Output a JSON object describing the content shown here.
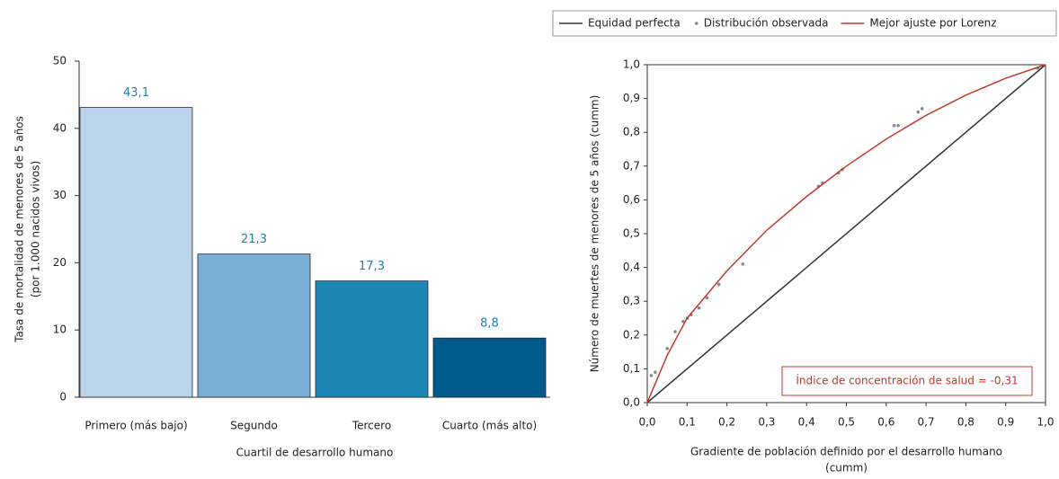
{
  "chart_data": [
    {
      "type": "bar",
      "categories": [
        "Primero (más bajo)",
        "Segundo",
        "Tercero",
        "Cuarto (más alto)"
      ],
      "values": [
        43.1,
        21.3,
        17.3,
        8.8
      ],
      "value_labels": [
        "43,1",
        "21,3",
        "17,3",
        "8,8"
      ],
      "colors": [
        "#bcd4ea",
        "#7aadd3",
        "#1f87b5",
        "#005a8c"
      ],
      "ylim": [
        0,
        50
      ],
      "yticks": [
        0,
        10,
        20,
        30,
        40,
        50
      ],
      "xlabel": "Cuartil de desarrollo humano",
      "ylabel": [
        "Tasa de mortalidad de menores de 5 años",
        "(por 1.000 nacidos vivos)"
      ]
    },
    {
      "type": "line",
      "series": [
        {
          "name": "Equidad perfecta",
          "color": "#333333",
          "style": "line",
          "x": [
            0,
            1
          ],
          "values": [
            0,
            1
          ]
        },
        {
          "name": "Distribución observada",
          "color": "#888888",
          "style": "points",
          "x": [
            0.01,
            0.02,
            0.05,
            0.07,
            0.09,
            0.1,
            0.11,
            0.13,
            0.15,
            0.18,
            0.24,
            0.43,
            0.44,
            0.48,
            0.49,
            0.62,
            0.63,
            0.68,
            0.69,
            0.98
          ],
          "values": [
            0.08,
            0.09,
            0.16,
            0.21,
            0.24,
            0.25,
            0.26,
            0.28,
            0.31,
            0.35,
            0.41,
            0.64,
            0.65,
            0.68,
            0.69,
            0.82,
            0.82,
            0.86,
            0.87,
            0.99
          ]
        },
        {
          "name": "Mejor ajuste por Lorenz",
          "color": "#c0392b",
          "style": "line",
          "x": [
            0,
            0.05,
            0.1,
            0.2,
            0.3,
            0.4,
            0.5,
            0.6,
            0.7,
            0.8,
            0.9,
            1
          ],
          "values": [
            0,
            0.14,
            0.25,
            0.39,
            0.51,
            0.61,
            0.7,
            0.78,
            0.85,
            0.91,
            0.96,
            1
          ]
        }
      ],
      "xlim": [
        0,
        1
      ],
      "ylim": [
        0,
        1
      ],
      "xticks": [
        {
          "value": 0,
          "label": "0,0"
        },
        {
          "value": 0.1,
          "label": "0,1"
        },
        {
          "value": 0.2,
          "label": "0,2"
        },
        {
          "value": 0.3,
          "label": "0,3"
        },
        {
          "value": 0.4,
          "label": "0,4"
        },
        {
          "value": 0.5,
          "label": "0,5"
        },
        {
          "value": 0.6,
          "label": "0,6"
        },
        {
          "value": 0.7,
          "label": "0,7"
        },
        {
          "value": 0.8,
          "label": "0,8"
        },
        {
          "value": 0.9,
          "label": "0,9"
        },
        {
          "value": 1,
          "label": "1,0"
        }
      ],
      "yticks": [
        {
          "value": 0,
          "label": "0,0"
        },
        {
          "value": 0.1,
          "label": "0,1"
        },
        {
          "value": 0.2,
          "label": "0,2"
        },
        {
          "value": 0.3,
          "label": "0,3"
        },
        {
          "value": 0.4,
          "label": "0,4"
        },
        {
          "value": 0.5,
          "label": "0,5"
        },
        {
          "value": 0.6,
          "label": "0,6"
        },
        {
          "value": 0.7,
          "label": "0,7"
        },
        {
          "value": 0.8,
          "label": "0,8"
        },
        {
          "value": 0.9,
          "label": "0,9"
        },
        {
          "value": 1,
          "label": "1,0"
        }
      ],
      "xlabel": [
        "Gradiente de población definido por el desarrollo humano",
        "(cumm)"
      ],
      "ylabel": "Número de muertes de menores de 5 años (cumm)",
      "annotation": "Índice de concentración de salud = -0,31",
      "legend": "top"
    }
  ]
}
